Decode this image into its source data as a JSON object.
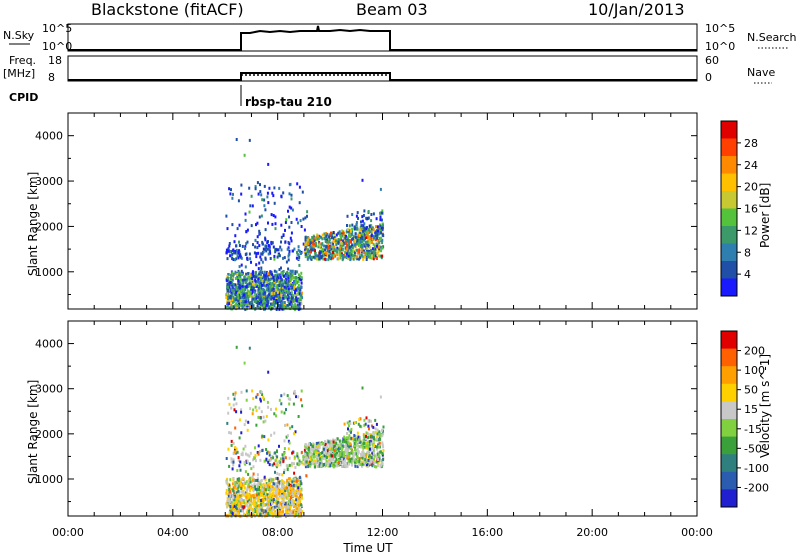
{
  "header": {
    "station": "Blackstone (fitACF)",
    "beam": "Beam 03",
    "date": "10/Jan/2013"
  },
  "strip_labels": {
    "nsky": "N.Sky",
    "freq": "Freq.",
    "freq_unit": "[MHz]",
    "cpid": "CPID",
    "nsearch": "N.Search",
    "nave": "Nave",
    "cpid_value": "rbsp-tau 210"
  },
  "strip_ticks": {
    "nsky_left": [
      "10^5",
      "10^0"
    ],
    "nsky_right": [
      "10^5",
      "10^0"
    ],
    "freq_left": [
      "18",
      "8"
    ],
    "nave_right": [
      "60",
      "0"
    ]
  },
  "chart_data": [
    {
      "type": "heatmap",
      "panel": "power",
      "ylabel": "Slant Range [km]",
      "ylim": [
        180,
        4500
      ],
      "yticks": [
        1000,
        2000,
        3000,
        4000
      ],
      "xlim": [
        0,
        24
      ],
      "colorbar": {
        "label": "Power [dB]",
        "ticks": [
          "4",
          "8",
          "12",
          "16",
          "20",
          "24",
          "28"
        ],
        "colors": [
          "#1a1aff",
          "#1f4fa6",
          "#2e7fb0",
          "#3c9a6a",
          "#55c23c",
          "#c8c832",
          "#ffc000",
          "#ff8a00",
          "#ff4000",
          "#e00000"
        ]
      },
      "scatter_regions": [
        {
          "x": [
            6.0,
            8.9
          ],
          "y": [
            200,
            1050
          ],
          "values": "4-20 dB, mostly blue-green"
        },
        {
          "x": [
            6.0,
            9.0
          ],
          "y": [
            1000,
            3000
          ],
          "values": "4-12 dB, sparse"
        },
        {
          "x": [
            9.0,
            12.0
          ],
          "y": [
            1300,
            2100
          ],
          "values": "8-28 dB"
        }
      ]
    },
    {
      "type": "heatmap",
      "panel": "velocity",
      "ylabel": "Slant Range [km]",
      "ylim": [
        180,
        4500
      ],
      "yticks": [
        1000,
        2000,
        3000,
        4000
      ],
      "xlim": [
        0,
        24
      ],
      "xlabel": "Time UT",
      "xticks": [
        "00:00",
        "04:00",
        "08:00",
        "12:00",
        "16:00",
        "20:00",
        "00:00"
      ],
      "colorbar": {
        "label": "Velocity [m s^-1]",
        "ticks": [
          "200",
          "100",
          "50",
          "15",
          "-15",
          "-50",
          "-100",
          "-200"
        ],
        "colors": [
          "#2020d0",
          "#2a5cb0",
          "#2f7f7f",
          "#3aa03a",
          "#80d040",
          "#c8c8c8",
          "#ffd000",
          "#ffa000",
          "#ff6000",
          "#e00000"
        ]
      },
      "scatter_regions": [
        {
          "x": [
            6.0,
            8.9
          ],
          "y": [
            200,
            1050
          ],
          "values": "-100 to 50 m/s, mostly orange/grey"
        },
        {
          "x": [
            6.0,
            9.0
          ],
          "y": [
            1000,
            3000
          ],
          "values": "sparse"
        },
        {
          "x": [
            9.0,
            12.0
          ],
          "y": [
            1300,
            2100
          ],
          "values": "-15 to 50 m/s, grey/green"
        }
      ]
    }
  ]
}
